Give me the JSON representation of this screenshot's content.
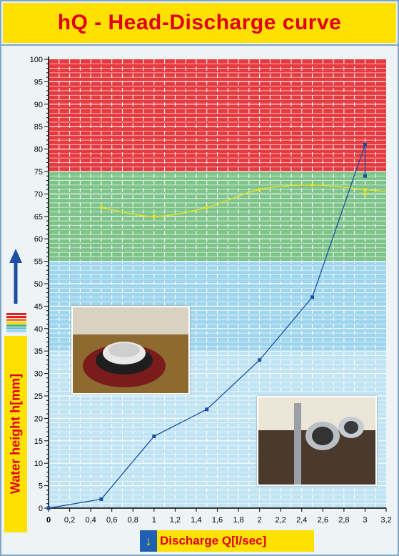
{
  "title": "hQ - Head-Discharge curve",
  "chart_data": {
    "type": "line",
    "xlabel": "Discharge Q[l/sec]",
    "ylabel": "Water height h[mm]",
    "xlim": [
      0,
      3.2
    ],
    "ylim": [
      0,
      100
    ],
    "x_ticks": [
      "0",
      "0,2",
      "0,4",
      "0,6",
      "0,8",
      "1",
      "1,2",
      "1,4",
      "1,6",
      "1,8",
      "2",
      "2,2",
      "2,4",
      "2,6",
      "2,8",
      "3",
      "3,2"
    ],
    "y_ticks": [
      "0",
      "5",
      "10",
      "15",
      "20",
      "25",
      "30",
      "35",
      "40",
      "45",
      "50",
      "55",
      "60",
      "65",
      "70",
      "75",
      "80",
      "85",
      "90",
      "95",
      "100"
    ],
    "zones": [
      {
        "from": 75,
        "to": 100,
        "color": "#e53a3f"
      },
      {
        "from": 55,
        "to": 75,
        "color": "#7ec48a"
      },
      {
        "from": 0,
        "to": 55,
        "color": "#9fd6ee"
      }
    ],
    "series": [
      {
        "color": "#1c4fa3",
        "x": [
          0,
          0.5,
          1,
          1.5,
          2,
          2.5,
          3,
          3
        ],
        "y": [
          0,
          2,
          16,
          22,
          33,
          47,
          81,
          74
        ]
      },
      {
        "color": "#f2e318",
        "x": [
          0.5,
          1,
          1.5,
          2,
          2.5,
          3,
          3
        ],
        "y": [
          67,
          65,
          67,
          71,
          72,
          71,
          70
        ]
      }
    ]
  },
  "photos": [
    {
      "name": "drain-fitting-photo",
      "description": "drain fitting in basin"
    },
    {
      "name": "pipe-outlet-photo",
      "description": "pipe outlet test rig"
    }
  ],
  "colors": {
    "title_bg": "#ffe100",
    "title_text": "#e0001b",
    "frame": "#7fa6c2"
  }
}
